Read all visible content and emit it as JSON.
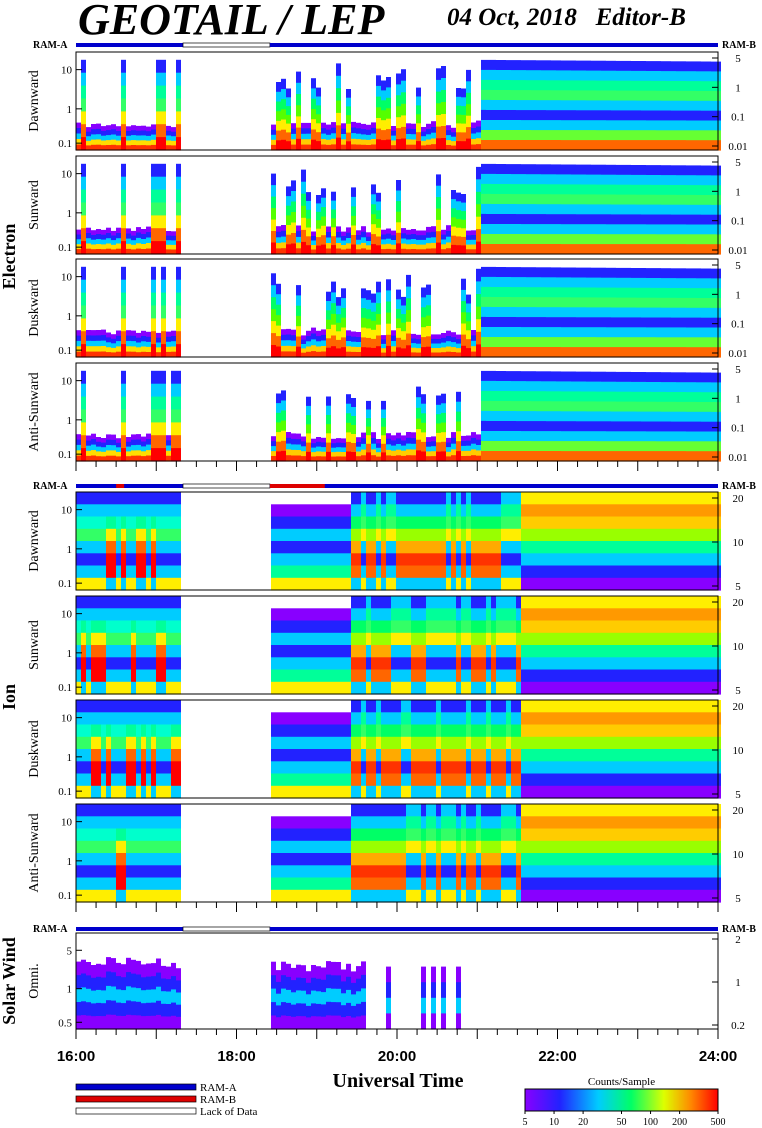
{
  "header": {
    "title": "GEOTAIL / LEP",
    "date": "04 Oct, 2018",
    "editor": "Editor-B"
  },
  "sections": [
    {
      "id": "electron",
      "label": "Electron",
      "ram_labels": [
        "RAM-A",
        "RAM-B"
      ],
      "panels": [
        {
          "label": "Dawnward",
          "left_ticks": [
            "10",
            "1",
            "0.1"
          ],
          "right_ticks": [
            "5",
            "1",
            "0.1",
            "0.01"
          ]
        },
        {
          "label": "Sunward",
          "left_ticks": [
            "10",
            "1",
            "0.1"
          ],
          "right_ticks": [
            "5",
            "1",
            "0.1",
            "0.01"
          ]
        },
        {
          "label": "Duskward",
          "left_ticks": [
            "10",
            "1",
            "0.1"
          ],
          "right_ticks": [
            "5",
            "1",
            "0.1",
            "0.01"
          ]
        },
        {
          "label": "Anti-Sunward",
          "left_ticks": [
            "10",
            "1",
            "0.1"
          ],
          "right_ticks": [
            "5",
            "1",
            "0.1",
            "0.01"
          ]
        }
      ]
    },
    {
      "id": "ion",
      "label": "Ion",
      "ram_labels": [
        "RAM-A",
        "RAM-B"
      ],
      "panels": [
        {
          "label": "Dawnward",
          "left_ticks": [
            "10",
            "1",
            "0.1"
          ],
          "right_ticks": [
            "20",
            "10",
            "5"
          ]
        },
        {
          "label": "Sunward",
          "left_ticks": [
            "10",
            "1",
            "0.1"
          ],
          "right_ticks": [
            "20",
            "10",
            "5"
          ]
        },
        {
          "label": "Duskward",
          "left_ticks": [
            "10",
            "1",
            "0.1"
          ],
          "right_ticks": [
            "20",
            "10",
            "5"
          ]
        },
        {
          "label": "Anti-Sunward",
          "left_ticks": [
            "10",
            "1",
            "0.1"
          ],
          "right_ticks": [
            "20",
            "10",
            "5"
          ]
        }
      ]
    },
    {
      "id": "solar-wind",
      "label": "Solar Wind",
      "ram_labels": [
        "RAM-A",
        "RAM-B"
      ],
      "panels": [
        {
          "label": "Omni.",
          "left_ticks": [
            "5",
            "1",
            "0.5"
          ],
          "right_ticks": [
            "2",
            "1",
            "0.2"
          ]
        }
      ]
    }
  ],
  "chart_data": {
    "type": "heatmap",
    "xlabel": "Universal Time",
    "x_ticks": [
      "16:00",
      "18:00",
      "20:00",
      "22:00",
      "24:00"
    ],
    "xlim": [
      "16:00",
      "24:00"
    ],
    "data_gap": [
      "17:20",
      "18:25"
    ],
    "colorbar": {
      "title": "Counts/Sample",
      "ticks": [
        "5",
        "10",
        "20",
        "50",
        "100",
        "200",
        "500"
      ],
      "scale": "log"
    },
    "legend": [
      {
        "label": "RAM-A",
        "color": "#0000cc"
      },
      {
        "label": "RAM-B",
        "color": "#dd0000"
      },
      {
        "label": "Lack of Data",
        "color": "#ffffff"
      }
    ]
  }
}
